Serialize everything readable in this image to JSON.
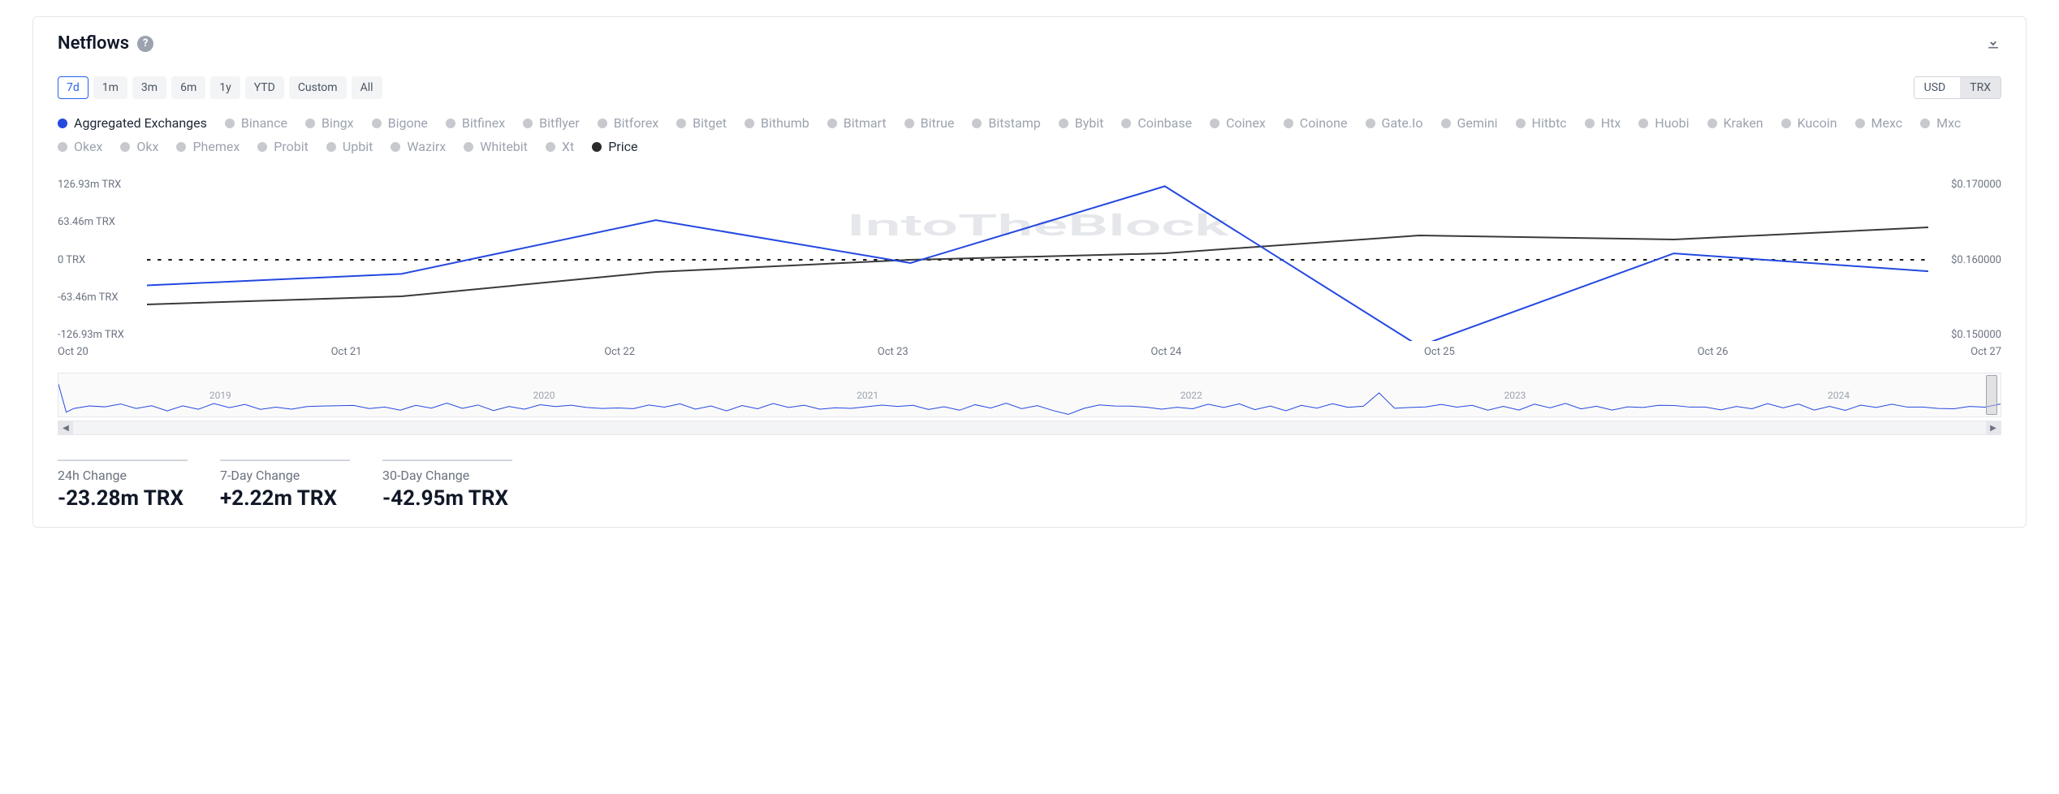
{
  "title": "Netflows",
  "colors": {
    "primary": "#2448e0",
    "inactive": "#c7c9cf",
    "price": "#2b2b2b",
    "text_muted": "#6b7280",
    "grid": "#e5e7eb",
    "background": "#ffffff"
  },
  "time_ranges": [
    {
      "label": "7d",
      "active": true
    },
    {
      "label": "1m",
      "active": false
    },
    {
      "label": "3m",
      "active": false
    },
    {
      "label": "6m",
      "active": false
    },
    {
      "label": "1y",
      "active": false
    },
    {
      "label": "YTD",
      "active": false
    },
    {
      "label": "Custom",
      "active": false
    },
    {
      "label": "All",
      "active": false
    }
  ],
  "units": [
    {
      "label": "USD",
      "active": false
    },
    {
      "label": "TRX",
      "active": true
    }
  ],
  "legend": [
    {
      "label": "Aggregated Exchanges",
      "color": "#2448e0",
      "active": true
    },
    {
      "label": "Binance",
      "color": "#c7c9cf",
      "active": false
    },
    {
      "label": "Bingx",
      "color": "#c7c9cf",
      "active": false
    },
    {
      "label": "Bigone",
      "color": "#c7c9cf",
      "active": false
    },
    {
      "label": "Bitfinex",
      "color": "#c7c9cf",
      "active": false
    },
    {
      "label": "Bitflyer",
      "color": "#c7c9cf",
      "active": false
    },
    {
      "label": "Bitforex",
      "color": "#c7c9cf",
      "active": false
    },
    {
      "label": "Bitget",
      "color": "#c7c9cf",
      "active": false
    },
    {
      "label": "Bithumb",
      "color": "#c7c9cf",
      "active": false
    },
    {
      "label": "Bitmart",
      "color": "#c7c9cf",
      "active": false
    },
    {
      "label": "Bitrue",
      "color": "#c7c9cf",
      "active": false
    },
    {
      "label": "Bitstamp",
      "color": "#c7c9cf",
      "active": false
    },
    {
      "label": "Bybit",
      "color": "#c7c9cf",
      "active": false
    },
    {
      "label": "Coinbase",
      "color": "#c7c9cf",
      "active": false
    },
    {
      "label": "Coinex",
      "color": "#c7c9cf",
      "active": false
    },
    {
      "label": "Coinone",
      "color": "#c7c9cf",
      "active": false
    },
    {
      "label": "Gate.Io",
      "color": "#c7c9cf",
      "active": false
    },
    {
      "label": "Gemini",
      "color": "#c7c9cf",
      "active": false
    },
    {
      "label": "Hitbtc",
      "color": "#c7c9cf",
      "active": false
    },
    {
      "label": "Htx",
      "color": "#c7c9cf",
      "active": false
    },
    {
      "label": "Huobi",
      "color": "#c7c9cf",
      "active": false
    },
    {
      "label": "Kraken",
      "color": "#c7c9cf",
      "active": false
    },
    {
      "label": "Kucoin",
      "color": "#c7c9cf",
      "active": false
    },
    {
      "label": "Mexc",
      "color": "#c7c9cf",
      "active": false
    },
    {
      "label": "Mxc",
      "color": "#c7c9cf",
      "active": false
    },
    {
      "label": "Okex",
      "color": "#c7c9cf",
      "active": false
    },
    {
      "label": "Okx",
      "color": "#c7c9cf",
      "active": false
    },
    {
      "label": "Phemex",
      "color": "#c7c9cf",
      "active": false
    },
    {
      "label": "Probit",
      "color": "#c7c9cf",
      "active": false
    },
    {
      "label": "Upbit",
      "color": "#c7c9cf",
      "active": false
    },
    {
      "label": "Wazirx",
      "color": "#c7c9cf",
      "active": false
    },
    {
      "label": "Whitebit",
      "color": "#c7c9cf",
      "active": false
    },
    {
      "label": "Xt",
      "color": "#c7c9cf",
      "active": false
    },
    {
      "label": "Price",
      "color": "#2b2b2b",
      "active": true
    }
  ],
  "chart": {
    "type": "line",
    "x_labels": [
      "Oct 20",
      "Oct 21",
      "Oct 22",
      "Oct 23",
      "Oct 24",
      "Oct 25",
      "Oct 26",
      "Oct 27"
    ],
    "y_left": {
      "ticks": [
        "126.93m TRX",
        "63.46m TRX",
        "0 TRX",
        "-63.46m TRX",
        "-126.93m TRX"
      ],
      "min": -126.93,
      "max": 126.93
    },
    "y_right": {
      "ticks": [
        "$0.170000",
        "$0.160000",
        "$0.150000"
      ],
      "min": 0.15,
      "max": 0.17
    },
    "series_netflow": {
      "color": "#2448e0",
      "stroke_width": 2,
      "values_m_trx": [
        -40,
        -22,
        62,
        -5,
        115,
        -135,
        10,
        -18
      ]
    },
    "series_price": {
      "color": "#3a3a3a",
      "stroke_width": 2,
      "values_usd": [
        0.1545,
        0.1555,
        0.1585,
        0.16,
        0.1608,
        0.163,
        0.1625,
        0.164
      ]
    },
    "zero_line": {
      "style": "dotted",
      "color": "#1a1a1a",
      "width": 2
    },
    "watermark": "IntoTheBlock"
  },
  "mini_chart": {
    "year_labels": [
      "2019",
      "2020",
      "2021",
      "2022",
      "2023",
      "2024"
    ],
    "line_color": "#2448e0"
  },
  "stats": [
    {
      "label": "24h Change",
      "value": "-23.28m TRX"
    },
    {
      "label": "7-Day Change",
      "value": "+2.22m TRX"
    },
    {
      "label": "30-Day Change",
      "value": "-42.95m TRX"
    }
  ]
}
